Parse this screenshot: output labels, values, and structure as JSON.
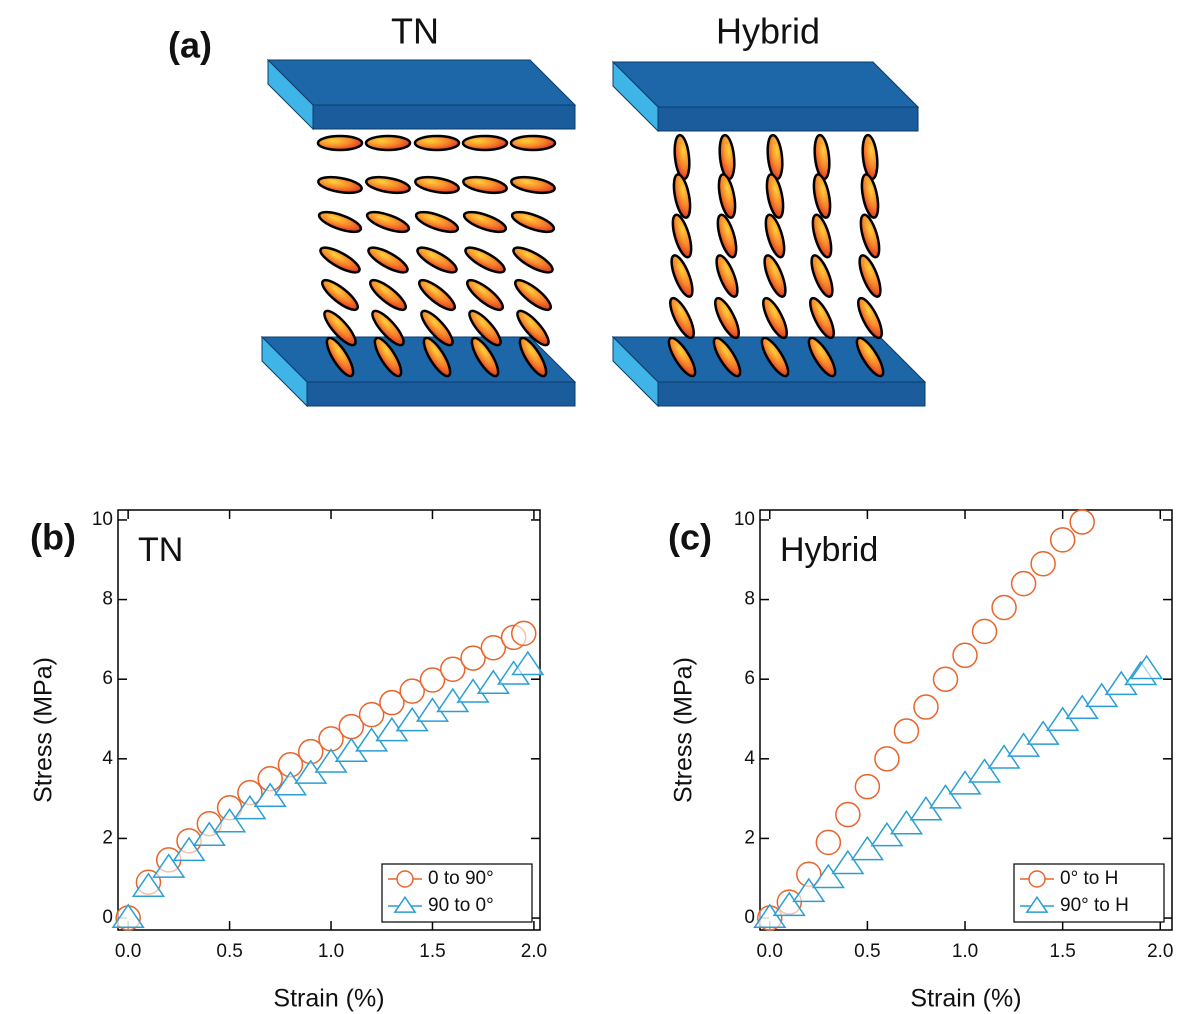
{
  "diagram": {
    "label": "(a)",
    "titles": [
      "TN",
      "Hybrid"
    ]
  },
  "chart_data": [
    {
      "type": "scatter",
      "panel_label": "(b)",
      "annotation": "TN",
      "xlabel": "Strain (%)",
      "ylabel": "Stress (MPa)",
      "xlim": [
        -0.05,
        2.03
      ],
      "ylim": [
        -0.3,
        10.25
      ],
      "xticks": [
        {
          "value": 0,
          "label": "0.0"
        },
        0.5,
        {
          "value": 1,
          "label": "1.0"
        },
        1.5,
        {
          "value": 2,
          "label": "2.0"
        }
      ],
      "yticks": [
        0,
        2,
        4,
        6,
        8,
        10
      ],
      "legend": "lower right",
      "series": [
        {
          "name": "0 to 90°",
          "color": "#e8652c",
          "marker": "circle",
          "x": [
            0,
            0.1,
            0.2,
            0.3,
            0.4,
            0.5,
            0.6,
            0.7,
            0.8,
            0.9,
            1.0,
            1.1,
            1.2,
            1.3,
            1.4,
            1.5,
            1.6,
            1.7,
            1.8,
            1.9,
            1.95
          ],
          "values": [
            0,
            0.9,
            1.46,
            1.94,
            2.37,
            2.77,
            3.15,
            3.5,
            3.85,
            4.18,
            4.5,
            4.81,
            5.11,
            5.41,
            5.7,
            5.98,
            6.25,
            6.53,
            6.79,
            7.05,
            7.15
          ]
        },
        {
          "name": "90 to 0°",
          "color": "#2b9fd3",
          "marker": "triangle",
          "x": [
            0,
            0.1,
            0.2,
            0.3,
            0.4,
            0.5,
            0.6,
            0.7,
            0.8,
            0.9,
            1.0,
            1.1,
            1.2,
            1.3,
            1.4,
            1.5,
            1.6,
            1.7,
            1.8,
            1.9,
            1.97
          ],
          "values": [
            0,
            0.78,
            1.26,
            1.68,
            2.06,
            2.4,
            2.73,
            3.04,
            3.33,
            3.62,
            3.9,
            4.17,
            4.43,
            4.69,
            4.94,
            5.18,
            5.42,
            5.66,
            5.88,
            6.11,
            6.35
          ]
        }
      ]
    },
    {
      "type": "scatter",
      "panel_label": "(c)",
      "annotation": "Hybrid",
      "xlabel": "Strain (%)",
      "ylabel": "Stress (MPa)",
      "xlim": [
        -0.05,
        2.06
      ],
      "ylim": [
        -0.3,
        10.25
      ],
      "xticks": [
        {
          "value": 0,
          "label": "0.0"
        },
        0.5,
        {
          "value": 1,
          "label": "1.0"
        },
        1.5,
        {
          "value": 2,
          "label": "2.0"
        }
      ],
      "yticks": [
        0,
        2,
        4,
        6,
        8,
        10
      ],
      "legend": "lower right",
      "series": [
        {
          "name": "0° to H",
          "color": "#e8652c",
          "marker": "circle",
          "x": [
            0,
            0.1,
            0.2,
            0.3,
            0.4,
            0.5,
            0.6,
            0.7,
            0.8,
            0.9,
            1.0,
            1.1,
            1.2,
            1.3,
            1.4,
            1.5,
            1.6
          ],
          "values": [
            0,
            0.4,
            1.1,
            1.9,
            2.6,
            3.3,
            4.0,
            4.7,
            5.3,
            6.0,
            6.6,
            7.2,
            7.8,
            8.4,
            8.9,
            9.5,
            9.95
          ]
        },
        {
          "name": "90° to H",
          "color": "#2b9fd3",
          "marker": "triangle",
          "x": [
            0,
            0.1,
            0.2,
            0.3,
            0.4,
            0.5,
            0.6,
            0.7,
            0.8,
            0.9,
            1.0,
            1.1,
            1.2,
            1.3,
            1.4,
            1.5,
            1.6,
            1.7,
            1.8,
            1.9,
            1.93
          ],
          "values": [
            0,
            0.3,
            0.65,
            1.0,
            1.35,
            1.7,
            2.05,
            2.35,
            2.7,
            3.0,
            3.35,
            3.65,
            4.0,
            4.3,
            4.6,
            4.95,
            5.25,
            5.55,
            5.85,
            6.1,
            6.25
          ]
        }
      ]
    }
  ]
}
